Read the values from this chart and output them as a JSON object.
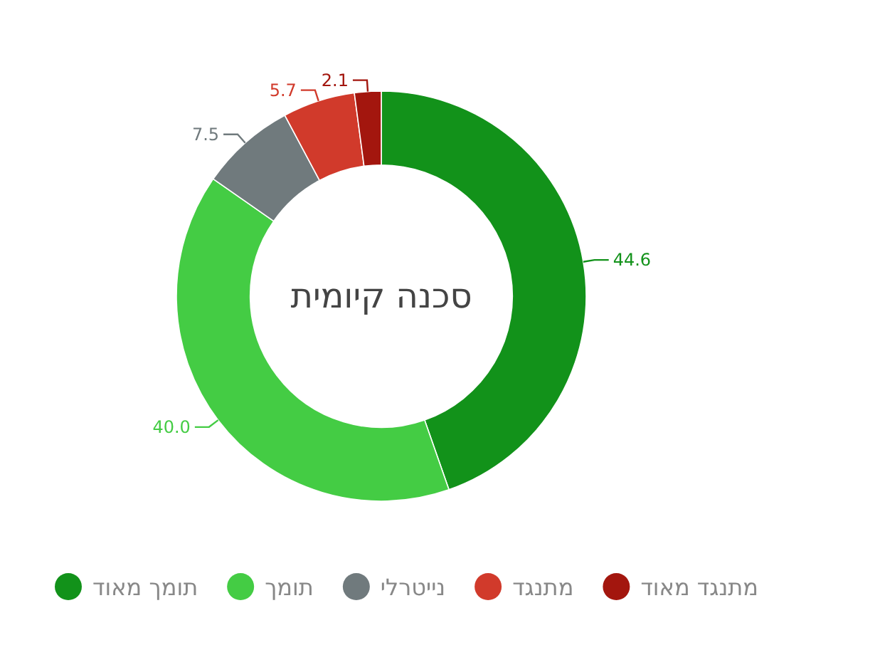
{
  "chart_data": {
    "type": "donut",
    "title": "סכנה קיומית",
    "categories": [
      "תומך מאוד",
      "תומך",
      "נייטרלי",
      "מתנגד",
      "מתנגד מאוד"
    ],
    "values": [
      44.6,
      40.0,
      7.5,
      5.7,
      2.1
    ],
    "value_labels": [
      "44.6",
      "40.0",
      "7.5",
      "5.7",
      "2.1"
    ],
    "colors": [
      "#12921a",
      "#44cc44",
      "#707a7d",
      "#d13a2b",
      "#a3160e"
    ],
    "legend": "bottom"
  }
}
